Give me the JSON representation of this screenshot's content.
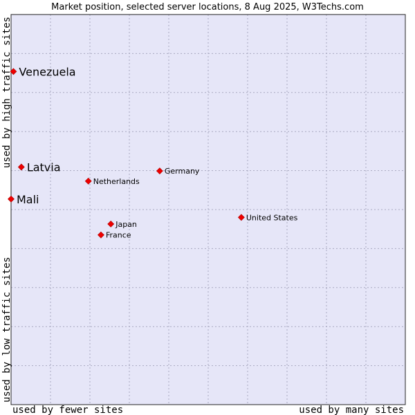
{
  "chart_data": {
    "type": "scatter",
    "title": "Market position, selected server locations, 8 Aug 2025, W3Techs.com",
    "xlabel_left": "used by fewer sites",
    "xlabel_right": "used by many sites",
    "ylabel_bottom": "used by low traffic sites",
    "ylabel_top": "used by high traffic sites",
    "xlim": [
      0,
      100
    ],
    "ylim": [
      0,
      100
    ],
    "grid": true,
    "colors": {
      "plot_bg": "#e6e6f8",
      "grid": "#a8a8c0",
      "border": "#222222",
      "point": "#ee0000"
    },
    "points": [
      {
        "name": "Venezuela",
        "x": 0.6,
        "y": 85.4,
        "emphasis": true
      },
      {
        "name": "Latvia",
        "x": 2.6,
        "y": 60.9,
        "emphasis": true
      },
      {
        "name": "Mali",
        "x": 0.0,
        "y": 52.7,
        "emphasis": true
      },
      {
        "name": "Germany",
        "x": 37.7,
        "y": 59.9,
        "emphasis": false
      },
      {
        "name": "Netherlands",
        "x": 19.6,
        "y": 57.3,
        "emphasis": false
      },
      {
        "name": "United States",
        "x": 58.4,
        "y": 48.0,
        "emphasis": false
      },
      {
        "name": "Japan",
        "x": 25.3,
        "y": 46.3,
        "emphasis": false
      },
      {
        "name": "France",
        "x": 22.8,
        "y": 43.5,
        "emphasis": false
      }
    ]
  }
}
